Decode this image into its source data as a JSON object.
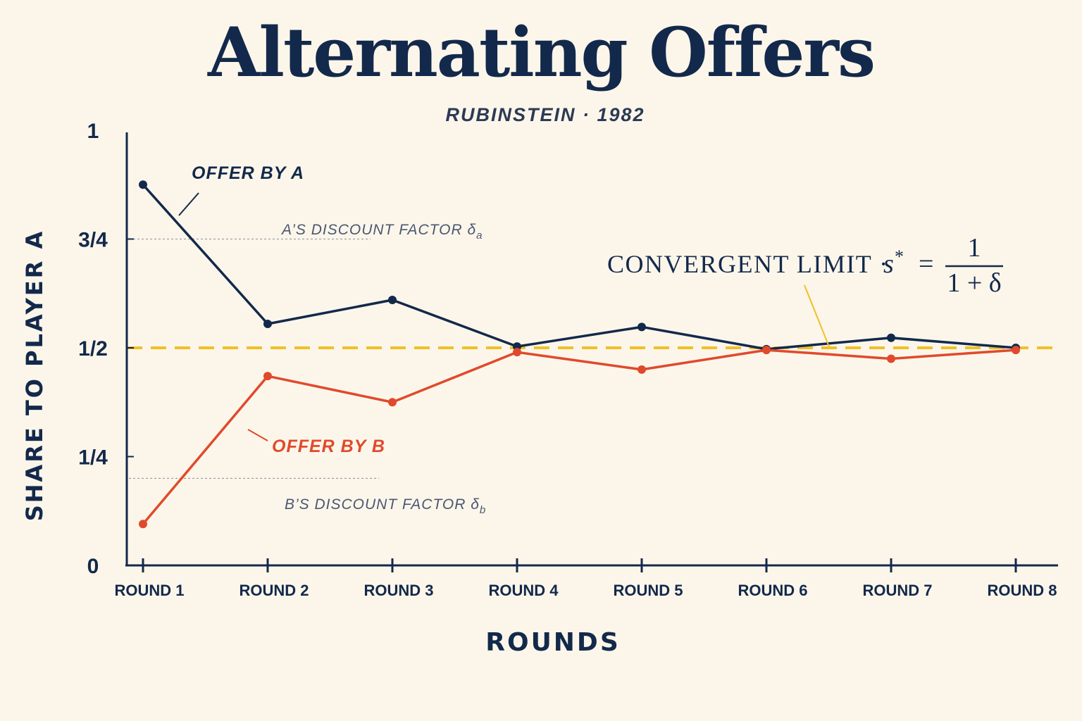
{
  "colors": {
    "background": "#fcf6ea",
    "navy": "#13294b",
    "offer_a": "#13294b",
    "offer_b": "#e04a2c",
    "limit": "#f0c028",
    "reference_line": "#9aa0aa"
  },
  "chart_data": {
    "type": "line",
    "title": "Alternating Offers",
    "subtitle": "RUBINSTEIN · 1982",
    "xlabel": "ROUNDS",
    "ylabel": "SHARE TO PLAYER A",
    "categories": [
      "ROUND 1",
      "ROUND 2",
      "ROUND 3",
      "ROUND 4",
      "ROUND 5",
      "ROUND 6",
      "ROUND 7",
      "ROUND 8"
    ],
    "ylim": [
      0,
      1
    ],
    "yticks": [
      {
        "value": 0,
        "label": "0"
      },
      {
        "value": 0.25,
        "label": "1/4"
      },
      {
        "value": 0.5,
        "label": "1/2"
      },
      {
        "value": 0.75,
        "label": "3/4"
      },
      {
        "value": 1,
        "label": "1"
      }
    ],
    "series": [
      {
        "name": "OFFER BY A",
        "color": "#13294b",
        "values": [
          0.875,
          0.555,
          0.61,
          0.503,
          0.548,
          0.497,
          0.523,
          0.5
        ]
      },
      {
        "name": "OFFER BY B",
        "color": "#e04a2c",
        "values": [
          0.095,
          0.435,
          0.375,
          0.49,
          0.45,
          0.495,
          0.475,
          0.495
        ]
      }
    ],
    "reference_lines": [
      {
        "value": 0.5,
        "style": "dashed",
        "color": "#f0c028",
        "label": "CONVERGENT LIMIT ·",
        "formula": {
          "lhs": "s",
          "sup": "*",
          "eq": "=",
          "numerator": "1",
          "denominator": "1 + δ"
        }
      },
      {
        "value": 0.75,
        "style": "dotted",
        "label": "A’S DISCOUNT FACTOR δ",
        "subscript": "a"
      },
      {
        "value": 0.2,
        "style": "dotted",
        "label": "B’S DISCOUNT FACTOR δ",
        "subscript": "b"
      }
    ],
    "grid": false
  }
}
